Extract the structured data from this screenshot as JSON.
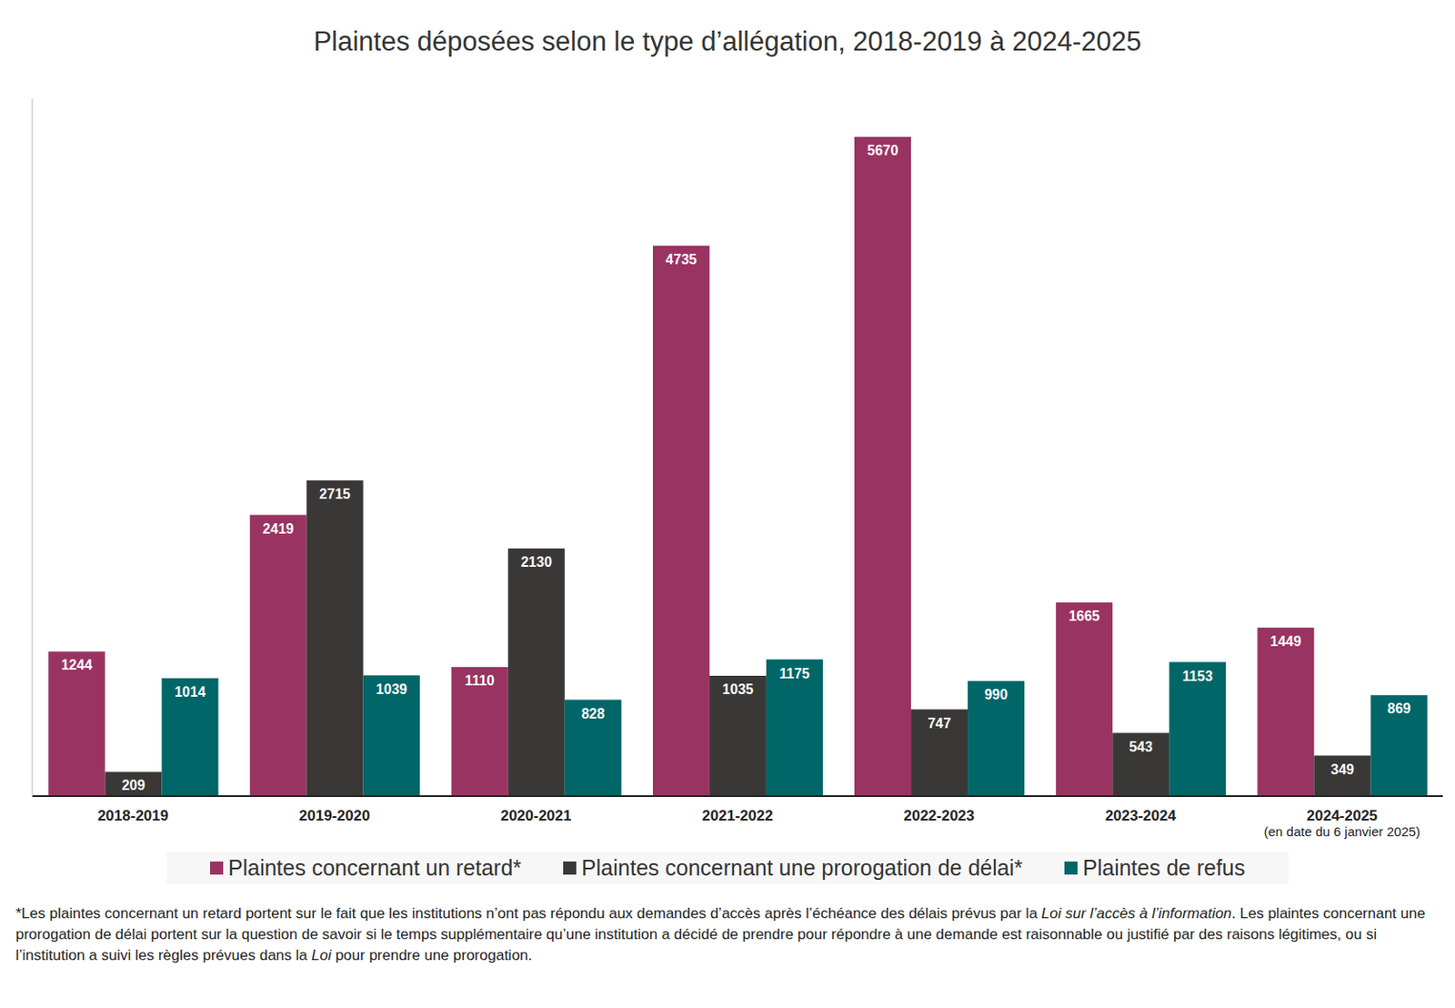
{
  "chart_data": {
    "type": "bar",
    "title": "Plaintes déposées selon le type d’allégation, 2018-2019 à 2024-2025",
    "categories": [
      "2018-2019",
      "2019-2020",
      "2020-2021",
      "2021-2022",
      "2022-2023",
      "2023-2024",
      "2024-2025"
    ],
    "annotations": [
      {
        "category": "2024-2025",
        "text": "(en date du 6 janvier 2025)"
      }
    ],
    "series": [
      {
        "name": "Plaintes concernant un retard*",
        "color": "#993462",
        "values": [
          1244,
          2419,
          1110,
          4735,
          5670,
          1665,
          1449
        ]
      },
      {
        "name": "Plaintes concernant une prorogation de délai*",
        "color": "#3a3837",
        "values": [
          209,
          2715,
          2130,
          1035,
          747,
          543,
          349
        ]
      },
      {
        "name": "Plaintes de refus",
        "color": "#006668",
        "values": [
          1014,
          1039,
          828,
          1175,
          990,
          1153,
          869
        ]
      }
    ],
    "ylim": [
      0,
      6000
    ],
    "yticks": [],
    "grid": false,
    "legend": "bottom",
    "data_labels": true,
    "tick_labels": "x",
    "footnote": [
      {
        "text": "*Les plaintes concernant un retard portent sur le fait que les institutions n’ont pas répondu aux demandes d’accès après l’échéance des délais prévus par la ",
        "italic": false
      },
      {
        "text": "Loi sur l’accès à l’information",
        "italic": true
      },
      {
        "text": ". Les plaintes concernant une prorogation de délai portent sur la question de savoir si le temps supplémentaire qu’une institution a décidé de prendre pour répondre à une demande est raisonnable ou justifié par des raisons légitimes, ou si l’institution a suivi les règles prévues dans la ",
        "italic": false
      },
      {
        "text": "Loi",
        "italic": true
      },
      {
        "text": " pour prendre une prorogation.",
        "italic": false
      }
    ]
  }
}
